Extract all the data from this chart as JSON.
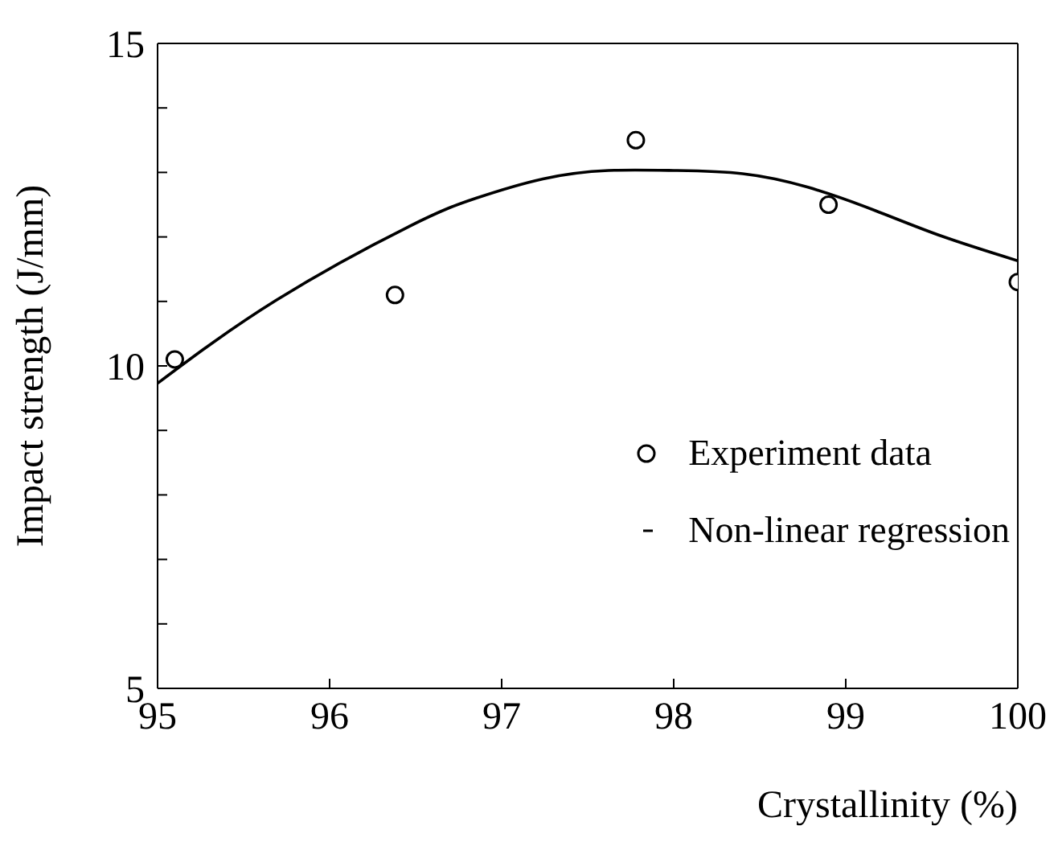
{
  "chart_data": {
    "type": "scatter",
    "xlabel": "Crystallinity (%)",
    "ylabel": "Impact strength (J/mm)",
    "xlim": [
      95,
      100
    ],
    "xticks": [
      95,
      96,
      97,
      98,
      99,
      100
    ],
    "ylim": [
      5,
      15
    ],
    "yticks": [
      5,
      {
        "value": 6,
        "label": null
      },
      {
        "value": 7,
        "label": null
      },
      {
        "value": 8,
        "label": null
      },
      {
        "value": 9,
        "label": null
      },
      10,
      {
        "value": 11,
        "label": null
      },
      {
        "value": 12,
        "label": null
      },
      {
        "value": 13,
        "label": null
      },
      {
        "value": 14,
        "label": null
      },
      15
    ],
    "legend": "right",
    "series": [
      {
        "name": "Experiment data",
        "marker": "circle",
        "color": "#000000",
        "x": [
          95.1,
          96.38,
          97.78,
          98.9,
          100
        ],
        "values": [
          10.1,
          11.1,
          13.5,
          12.5,
          11.3
        ]
      },
      {
        "name": "Non-linear regression",
        "type": "line",
        "marker": "none",
        "line_style": "solid",
        "color": "#000000",
        "x": [
          95,
          95.69,
          96.46,
          96.85,
          97.24,
          97.62,
          98.0,
          98.4,
          98.78,
          99.17,
          99.56,
          100
        ],
        "values": [
          9.73,
          11.02,
          12.16,
          12.6,
          12.9,
          13.03,
          13.03,
          12.98,
          12.77,
          12.41,
          12.01,
          11.63
        ]
      }
    ]
  }
}
